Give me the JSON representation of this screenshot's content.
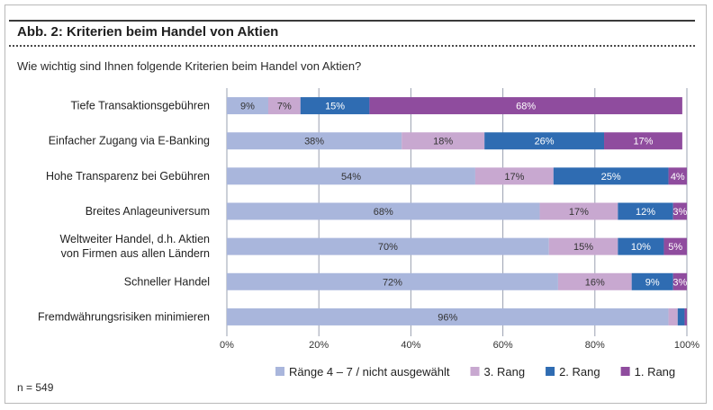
{
  "header": {
    "title": "Abb. 2: Kriterien beim Handel von Aktien",
    "question": "Wie wichtig sind Ihnen folgende Kriterien beim Handel von Aktien?",
    "sample": "n = 549"
  },
  "colors": {
    "series": [
      "#a9b6dc",
      "#c8a8d0",
      "#2f6cb2",
      "#8f4c9e"
    ],
    "grid": "#9aa0b0"
  },
  "chart_data": {
    "type": "bar",
    "orientation": "horizontal",
    "stacked": true,
    "categories": [
      [
        "Tiefe Transaktionsgebühren"
      ],
      [
        "Einfacher Zugang via E-Banking"
      ],
      [
        "Hohe Transparenz bei Gebühren"
      ],
      [
        "Breites Anlageuniversum"
      ],
      [
        "Weltweiter Handel, d.h. Aktien",
        "von Firmen aus allen Ländern"
      ],
      [
        "Schneller Handel"
      ],
      [
        "Fremdwährungsrisiken minimieren"
      ]
    ],
    "series": [
      {
        "name": "Ränge 4 – 7 / nicht ausgewählt",
        "values": [
          9,
          38,
          54,
          68,
          70,
          72,
          96
        ]
      },
      {
        "name": "3. Rang",
        "values": [
          7,
          18,
          17,
          17,
          15,
          16,
          2
        ]
      },
      {
        "name": "2. Rang",
        "values": [
          15,
          26,
          25,
          12,
          10,
          9,
          1.5
        ]
      },
      {
        "name": "1. Rang",
        "values": [
          68,
          17,
          4,
          3,
          5,
          3,
          0.5
        ]
      }
    ],
    "labels": [
      [
        "9%",
        "7%",
        "15%",
        "68%"
      ],
      [
        "38%",
        "18%",
        "26%",
        "17%"
      ],
      [
        "54%",
        "17%",
        "25%",
        "4%"
      ],
      [
        "68%",
        "17%",
        "12%",
        "3%"
      ],
      [
        "70%",
        "15%",
        "10%",
        "5%"
      ],
      [
        "72%",
        "16%",
        "9%",
        "3%"
      ],
      [
        "96%",
        "",
        "",
        ""
      ]
    ],
    "xticks": [
      "0%",
      "20%",
      "40%",
      "60%",
      "80%",
      "100%"
    ],
    "xlim": [
      0,
      100
    ],
    "grid": true,
    "legend": "bottom"
  }
}
